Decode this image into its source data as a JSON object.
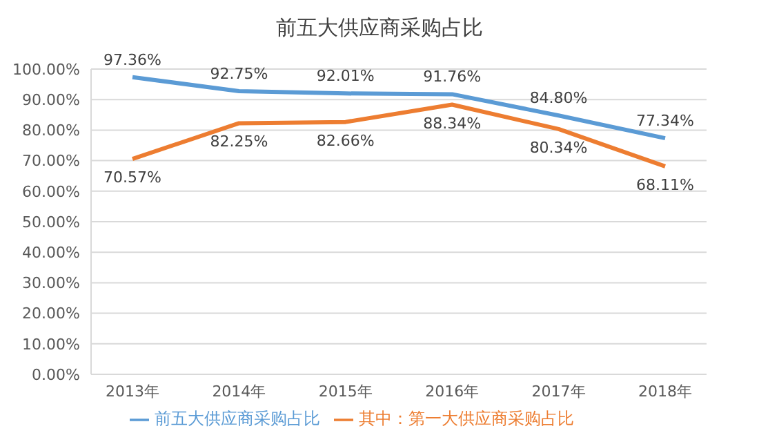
{
  "chart_data": {
    "type": "line",
    "title": "前五大供应商采购占比",
    "categories": [
      "2013年",
      "2014年",
      "2015年",
      "2016年",
      "2017年",
      "2018年"
    ],
    "series": [
      {
        "name": "前五大供应商采购占比",
        "color": "#5b9bd5",
        "values": [
          97.36,
          92.75,
          92.01,
          91.76,
          84.8,
          77.34
        ],
        "value_labels": [
          "97.36%",
          "92.75%",
          "92.01%",
          "91.76%",
          "84.80%",
          "77.34%"
        ]
      },
      {
        "name": "其中：第一大供应商采购占比",
        "color": "#ed7d31",
        "values": [
          70.57,
          82.25,
          82.66,
          88.34,
          80.34,
          68.11
        ],
        "value_labels": [
          "70.57%",
          "82.25%",
          "82.66%",
          "88.34%",
          "80.34%",
          "68.11%"
        ]
      }
    ],
    "ylim": [
      0,
      100
    ],
    "yticks": [
      {
        "value": 0,
        "label": "0.00%"
      },
      {
        "value": 10,
        "label": "10.00%"
      },
      {
        "value": 20,
        "label": "20.00%"
      },
      {
        "value": 30,
        "label": "30.00%"
      },
      {
        "value": 40,
        "label": "40.00%"
      },
      {
        "value": 50,
        "label": "50.00%"
      },
      {
        "value": 60,
        "label": "60.00%"
      },
      {
        "value": 70,
        "label": "70.00%"
      },
      {
        "value": 80,
        "label": "80.00%"
      },
      {
        "value": 90,
        "label": "90.00%"
      },
      {
        "value": 100,
        "label": "100.00%"
      }
    ],
    "grid": "y",
    "legend": "bottom",
    "marker": "none",
    "line_style": "solid"
  }
}
